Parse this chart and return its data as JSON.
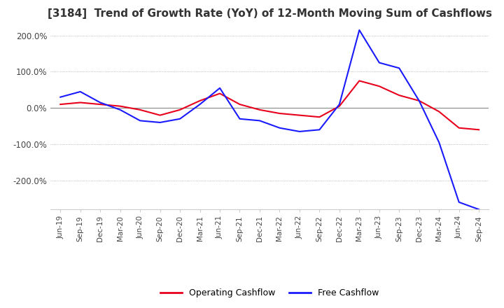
{
  "title": "[3184]  Trend of Growth Rate (YoY) of 12-Month Moving Sum of Cashflows",
  "title_fontsize": 11,
  "title_color": "#333333",
  "ylim": [
    -280,
    230
  ],
  "yticks": [
    -200,
    -100,
    0,
    100,
    200
  ],
  "ytick_labels": [
    "-200.0%",
    "-100.0%",
    "0.0%",
    "100.0%",
    "200.0%"
  ],
  "operating_color": "#e8001c",
  "free_color": "#1a1aff",
  "legend_labels": [
    "Operating Cashflow",
    "Free Cashflow"
  ],
  "x_labels": [
    "Jun-19",
    "Sep-19",
    "Dec-19",
    "Mar-20",
    "Jun-20",
    "Sep-20",
    "Dec-20",
    "Mar-21",
    "Jun-21",
    "Sep-21",
    "Dec-21",
    "Mar-22",
    "Jun-22",
    "Sep-22",
    "Dec-22",
    "Mar-23",
    "Jun-23",
    "Sep-23",
    "Dec-23",
    "Mar-24",
    "Jun-24",
    "Sep-24"
  ],
  "operating_cashflow": [
    10,
    15,
    10,
    5,
    -5,
    -20,
    -5,
    20,
    40,
    10,
    -5,
    -15,
    -20,
    -25,
    5,
    75,
    60,
    35,
    20,
    -10,
    -55,
    -60
  ],
  "free_cashflow": [
    30,
    45,
    15,
    -5,
    -35,
    -40,
    -30,
    10,
    55,
    -30,
    -35,
    -55,
    -65,
    -60,
    10,
    215,
    125,
    110,
    20,
    -95,
    -260,
    -280
  ]
}
